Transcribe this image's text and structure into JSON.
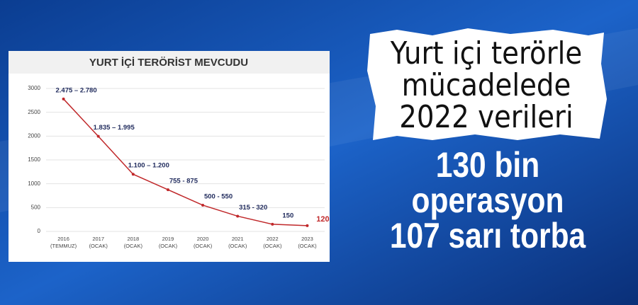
{
  "headline": [
    "Yurt içi terörle",
    "mücadelede",
    "2022 verileri"
  ],
  "subheadline": [
    "130 bin",
    "operasyon",
    "107 sarı torba"
  ],
  "chart_data": {
    "type": "line",
    "title": "YURT İÇİ TERÖRİST MEVCUDU",
    "categories": [
      "2016\n(TEMMUZ)",
      "2017\n(OCAK)",
      "2018\n(OCAK)",
      "2019\n(OCAK)",
      "2020\n(OCAK)",
      "2021\n(OCAK)",
      "2022\n(OCAK)",
      "2023\n(OCAK)"
    ],
    "values": [
      2780,
      1995,
      1200,
      875,
      550,
      320,
      150,
      120
    ],
    "value_labels": [
      "2.475 – 2.780",
      "1.835 – 1.995",
      "1.100 – 1.200",
      "755 - 875",
      "500 - 550",
      "315 - 320",
      "150",
      "120"
    ],
    "value_label_colors": [
      "#1f2a5c",
      "#1f2a5c",
      "#1f2a5c",
      "#1f2a5c",
      "#1f2a5c",
      "#1f2a5c",
      "#1f2a5c",
      "#c0282a"
    ],
    "color": "#c0282a",
    "ylim": [
      0,
      3000
    ],
    "yticks": [
      0,
      500,
      1000,
      1500,
      2000,
      2500,
      3000
    ],
    "grid": true
  }
}
